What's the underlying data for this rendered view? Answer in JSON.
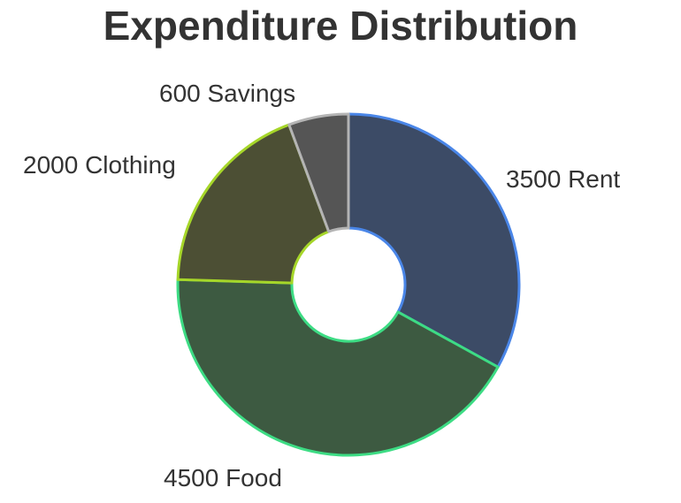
{
  "chart_data": {
    "type": "pie",
    "title": "Expenditure Distribution",
    "donut": true,
    "slices": [
      {
        "category": "Rent",
        "value": 3500,
        "label": "3500 Rent",
        "fill": "#3c4b66",
        "stroke": "#4a86e8"
      },
      {
        "category": "Food",
        "value": 4500,
        "label": "4500 Food",
        "fill": "#3d5a41",
        "stroke": "#3ddc84"
      },
      {
        "category": "Clothing",
        "value": 2000,
        "label": "2000 Clothing",
        "fill": "#4c4f34",
        "stroke": "#a6d629"
      },
      {
        "category": "Savings",
        "value": 600,
        "label": "600 Savings",
        "fill": "#555555",
        "stroke": "#b4b4b4"
      }
    ]
  }
}
